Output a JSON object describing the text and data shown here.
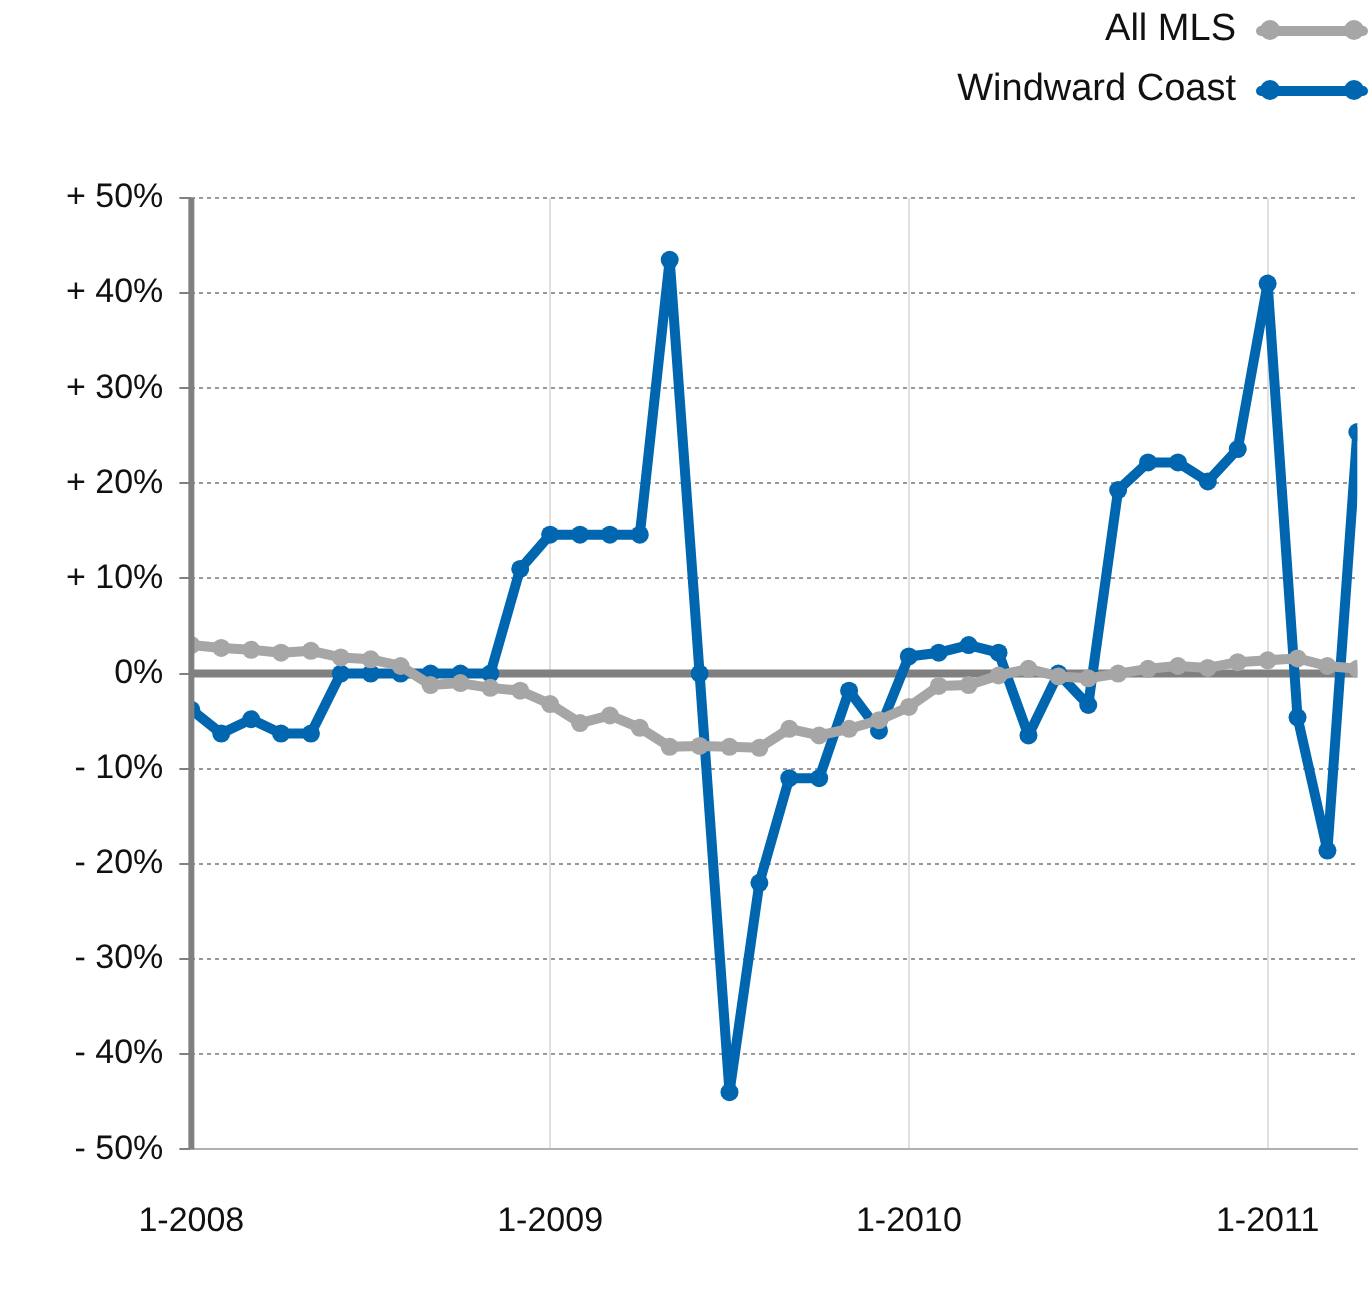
{
  "chart_data": {
    "type": "line",
    "x": [
      "2008-01",
      "2008-02",
      "2008-03",
      "2008-04",
      "2008-05",
      "2008-06",
      "2008-07",
      "2008-08",
      "2008-09",
      "2008-10",
      "2008-11",
      "2008-12",
      "2009-01",
      "2009-02",
      "2009-03",
      "2009-04",
      "2009-05",
      "2009-06",
      "2009-07",
      "2009-08",
      "2009-09",
      "2009-10",
      "2009-11",
      "2009-12",
      "2010-01",
      "2010-02",
      "2010-03",
      "2010-04",
      "2010-05",
      "2010-06",
      "2010-07",
      "2010-08",
      "2010-09",
      "2010-10",
      "2010-11",
      "2010-12",
      "2011-01",
      "2011-02",
      "2011-03",
      "2011-04"
    ],
    "series": [
      {
        "name": "All MLS",
        "color": "#a6a6a6",
        "values": [
          3.0,
          2.7,
          2.5,
          2.2,
          2.4,
          1.7,
          1.5,
          0.8,
          -1.2,
          -1.0,
          -1.5,
          -1.8,
          -3.2,
          -5.2,
          -4.4,
          -5.7,
          -7.7,
          -7.6,
          -7.7,
          -7.8,
          -5.8,
          -6.5,
          -5.8,
          -4.9,
          -3.5,
          -1.3,
          -1.2,
          -0.2,
          0.5,
          -0.3,
          -0.5,
          0,
          0.5,
          0.8,
          0.6,
          1.2,
          1.4,
          1.6,
          0.8,
          0.5
        ]
      },
      {
        "name": "Windward Coast",
        "color": "#0066b0",
        "values": [
          -3.8,
          -6.3,
          -4.8,
          -6.3,
          -6.3,
          0,
          0,
          0,
          0,
          0,
          0,
          11,
          14.6,
          14.6,
          14.6,
          14.6,
          43.5,
          0,
          -44,
          -22,
          -11,
          -11,
          -1.8,
          -6,
          1.8,
          2.2,
          3,
          2.2,
          -6.5,
          0,
          -3.3,
          19.3,
          22.2,
          22.2,
          20.2,
          23.6,
          41,
          -4.6,
          -18.6,
          25.4
        ]
      }
    ],
    "xlim": [
      "2008-01",
      "2011-04"
    ],
    "xticks": [
      {
        "value": "2008-01",
        "label": "1-2008"
      },
      {
        "value": "2009-01",
        "label": "1-2009"
      },
      {
        "value": "2010-01",
        "label": "1-2010"
      },
      {
        "value": "2011-01",
        "label": "1-2011"
      }
    ],
    "ylim": [
      -50,
      50
    ],
    "yticks": [
      {
        "value": -50,
        "label": "- 50%"
      },
      {
        "value": -40,
        "label": "- 40%"
      },
      {
        "value": -30,
        "label": "- 30%"
      },
      {
        "value": -20,
        "label": "- 20%"
      },
      {
        "value": -10,
        "label": "- 10%"
      },
      {
        "value": 0,
        "label": "0%"
      },
      {
        "value": 10,
        "label": "+ 10%"
      },
      {
        "value": 20,
        "label": "+ 20%"
      },
      {
        "value": 30,
        "label": "+ 30%"
      },
      {
        "value": 40,
        "label": "+ 40%"
      },
      {
        "value": 50,
        "label": "+ 50%"
      }
    ],
    "ref_lines": [
      {
        "axis": "y",
        "value": 0,
        "color": "#808080"
      }
    ],
    "grid": true,
    "legend": "top right",
    "marker": "circle",
    "line_style": "solid"
  }
}
